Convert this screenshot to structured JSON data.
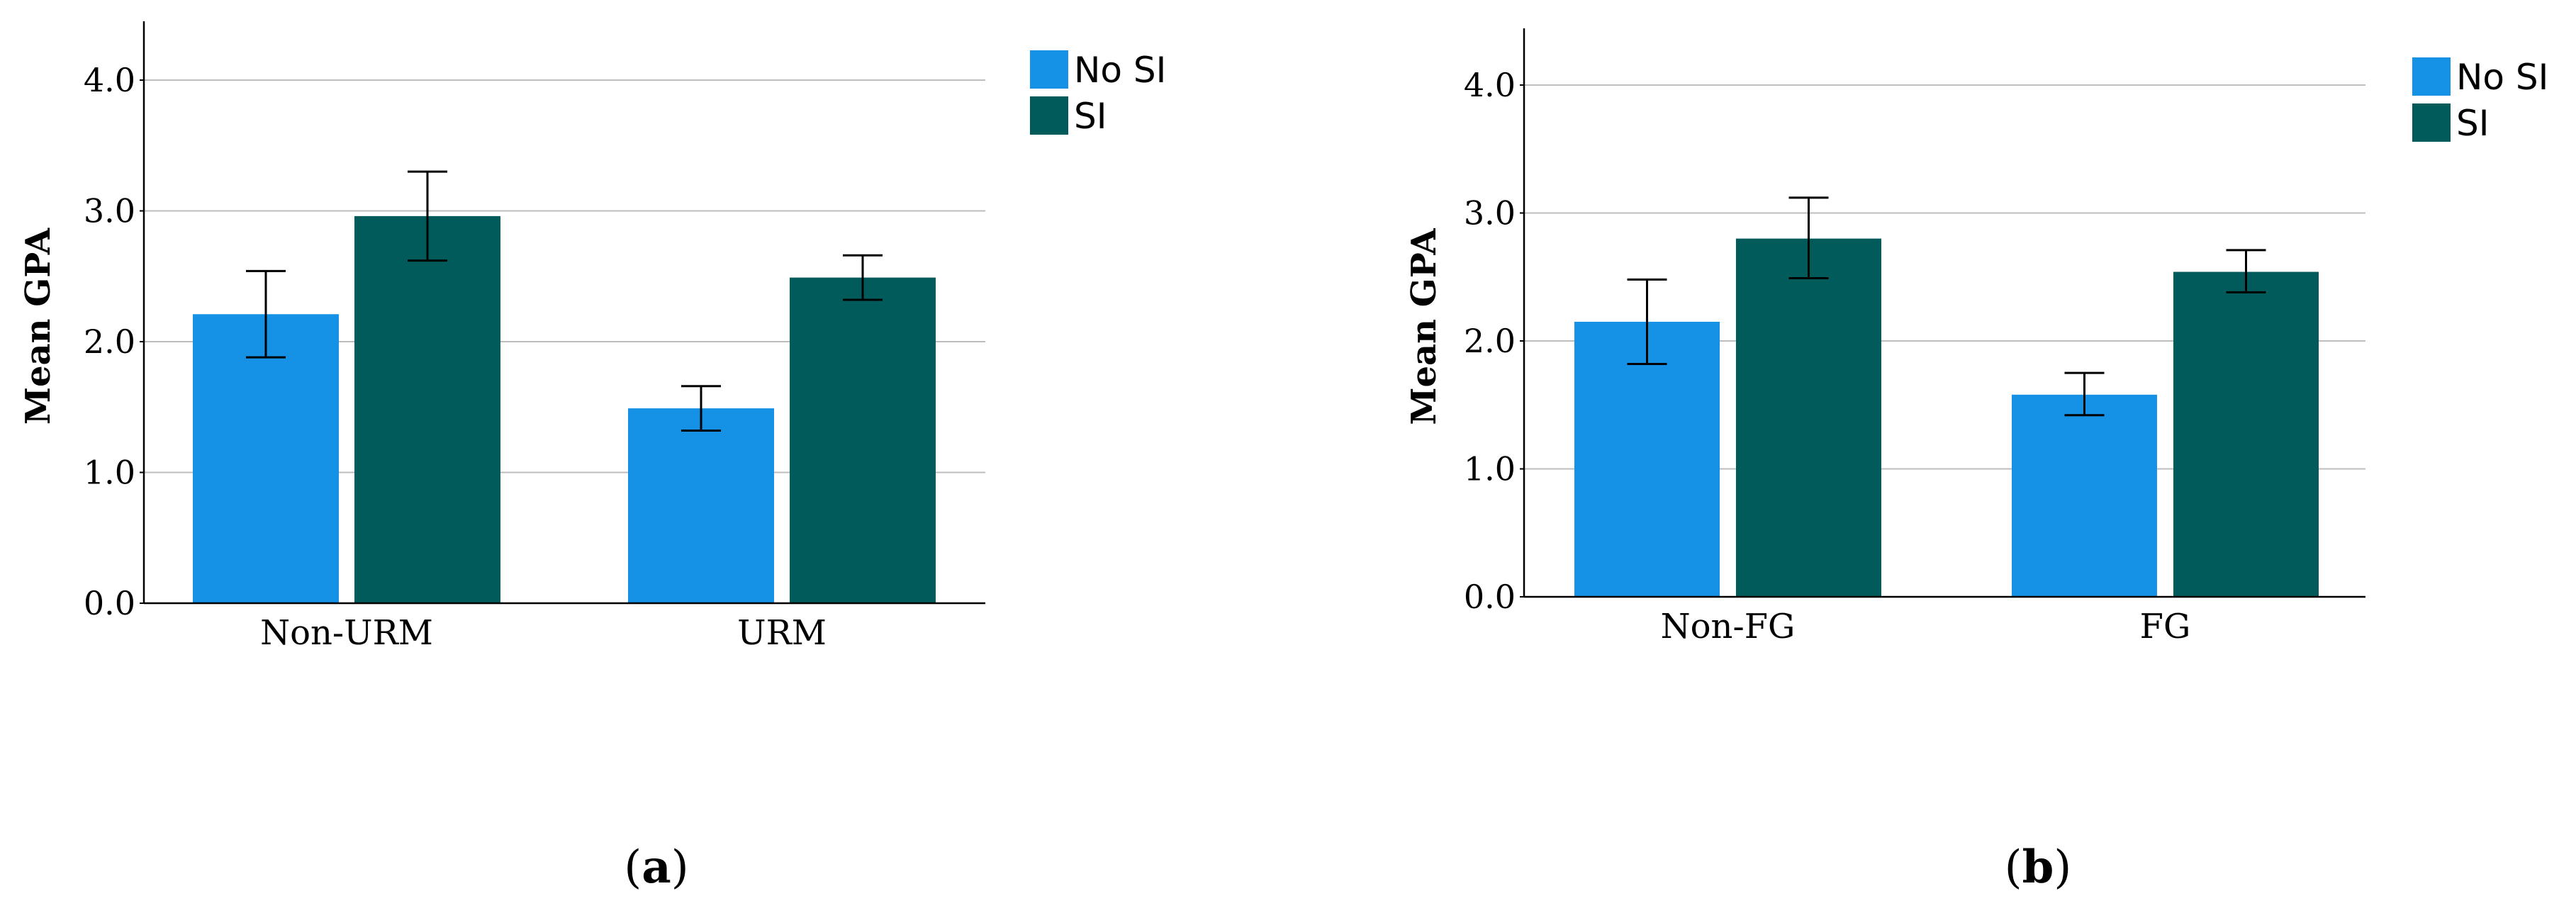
{
  "colors": {
    "no_si": "#1591e6",
    "si": "#025b5b",
    "grid": "#bdbdbd",
    "axis": "#000000"
  },
  "chart_data": [
    {
      "type": "bar",
      "panel_label": "a",
      "categories": [
        "Non-URM",
        "URM"
      ],
      "series": [
        {
          "name": "No SI",
          "values": [
            2.21,
            1.49
          ],
          "error_low": [
            1.88,
            1.32
          ],
          "error_high": [
            2.54,
            1.66
          ]
        },
        {
          "name": "SI",
          "values": [
            2.96,
            2.49
          ],
          "error_low": [
            2.62,
            2.32
          ],
          "error_high": [
            3.3,
            2.66
          ]
        }
      ],
      "title": "",
      "xlabel": "",
      "ylabel": "Mean GPA",
      "ylim": [
        0,
        4.4
      ],
      "yticks": [
        "0.0",
        "1.0",
        "2.0",
        "3.0",
        "4.0"
      ],
      "legend": [
        "No SI",
        "SI"
      ],
      "legend_position": "right",
      "grid": true
    },
    {
      "type": "bar",
      "panel_label": "b",
      "categories": [
        "Non-FG",
        "FG"
      ],
      "series": [
        {
          "name": "No SI",
          "values": [
            2.15,
            1.58
          ],
          "error_low": [
            1.82,
            1.42
          ],
          "error_high": [
            2.48,
            1.75
          ]
        },
        {
          "name": "SI",
          "values": [
            2.8,
            2.54
          ],
          "error_low": [
            2.49,
            2.38
          ],
          "error_high": [
            3.12,
            2.71
          ]
        }
      ],
      "title": "",
      "xlabel": "",
      "ylabel": "Mean GPA",
      "ylim": [
        0,
        4.4
      ],
      "yticks": [
        "0.0",
        "1.0",
        "2.0",
        "3.0",
        "4.0"
      ],
      "legend": [
        "No SI",
        "SI"
      ],
      "legend_position": "right",
      "grid": true
    }
  ]
}
